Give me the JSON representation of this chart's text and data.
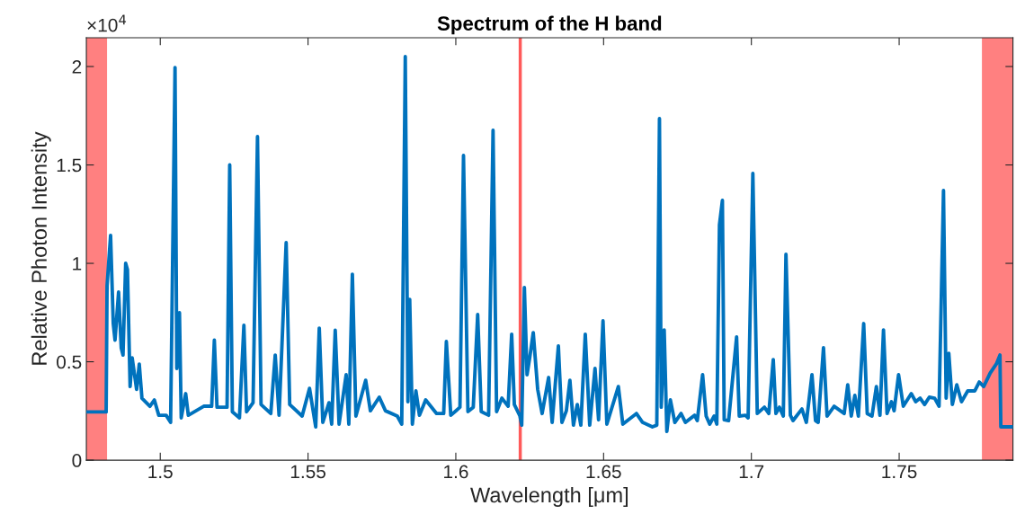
{
  "chart_data": {
    "type": "line",
    "title": "Spectrum of the H band",
    "xlabel": "Wavelength [μm]",
    "ylabel": "Relative Photon Intensity",
    "annotations": [
      "×10$^{4}$"
    ],
    "xlim": [
      1.475,
      1.7885
    ],
    "xticks": [
      1.5,
      1.55,
      1.6,
      1.65,
      1.7,
      1.75
    ],
    "ylim": [
      0,
      2.146
    ],
    "yticks": [
      0,
      0.5,
      1,
      1.5,
      2
    ],
    "grid": false,
    "legend": false,
    "line_style": "solid",
    "marker": "none",
    "bands": [
      {
        "axis": "x",
        "from": 1.475,
        "to": 1.482,
        "color": "#ff8080"
      },
      {
        "axis": "x",
        "from": 1.778,
        "to": 1.7885,
        "color": "#ff8080"
      }
    ],
    "ref_lines": [
      {
        "axis": "x",
        "value": 1.6218,
        "color": "#ff5a5a",
        "line_style": "solid"
      }
    ],
    "series": [
      {
        "color": "#0072bd",
        "x": [
          1.475,
          1.4817,
          1.482,
          1.4832,
          1.4841,
          1.4847,
          1.4859,
          1.4868,
          1.4874,
          1.4883,
          1.4889,
          1.4898,
          1.4905,
          1.492,
          1.4929,
          1.4938,
          1.4965,
          1.498,
          1.4995,
          1.502,
          1.5035,
          1.505,
          1.5056,
          1.5065,
          1.5071,
          1.5086,
          1.5095,
          1.5147,
          1.5174,
          1.5183,
          1.5192,
          1.5226,
          1.5235,
          1.5244,
          1.5268,
          1.5283,
          1.5292,
          1.5314,
          1.5329,
          1.5341,
          1.5374,
          1.5389,
          1.5402,
          1.5426,
          1.5438,
          1.548,
          1.5505,
          1.5526,
          1.5538,
          1.555,
          1.5571,
          1.558,
          1.5592,
          1.5605,
          1.5629,
          1.5638,
          1.565,
          1.5662,
          1.5695,
          1.5711,
          1.5741,
          1.5762,
          1.5802,
          1.5817,
          1.5829,
          1.5838,
          1.5844,
          1.5853,
          1.5865,
          1.5877,
          1.5898,
          1.5935,
          1.5959,
          1.5968,
          1.5983,
          1.6014,
          1.6026,
          1.6041,
          1.6059,
          1.6074,
          1.6086,
          1.6111,
          1.6126,
          1.6138,
          1.6156,
          1.6177,
          1.6189,
          1.6198,
          1.6217,
          1.6223,
          1.6232,
          1.6241,
          1.625,
          1.6262,
          1.6277,
          1.6292,
          1.6314,
          1.6326,
          1.6347,
          1.6359,
          1.6374,
          1.6386,
          1.6398,
          1.6411,
          1.6423,
          1.6438,
          1.6453,
          1.6471,
          1.6483,
          1.6498,
          1.6511,
          1.655,
          1.6565,
          1.6611,
          1.6632,
          1.6665,
          1.668,
          1.6689,
          1.6695,
          1.6705,
          1.6714,
          1.6726,
          1.6741,
          1.6762,
          1.6777,
          1.6808,
          1.6817,
          1.6835,
          1.6847,
          1.6859,
          1.6874,
          1.6883,
          1.6892,
          1.6902,
          1.6908,
          1.6923,
          1.695,
          1.6959,
          1.698,
          1.6989,
          1.7005,
          1.702,
          1.7044,
          1.7059,
          1.7074,
          1.7083,
          1.7095,
          1.7108,
          1.7117,
          1.7132,
          1.7141,
          1.7171,
          1.7186,
          1.7205,
          1.7217,
          1.7226,
          1.7244,
          1.7256,
          1.728,
          1.7314,
          1.7326,
          1.7338,
          1.735,
          1.7362,
          1.738,
          1.7392,
          1.7408,
          1.7423,
          1.7435,
          1.7447,
          1.7459,
          1.7474,
          1.7483,
          1.7498,
          1.7514,
          1.7541,
          1.7556,
          1.7571,
          1.7586,
          1.7602,
          1.762,
          1.7635,
          1.765,
          1.7659,
          1.7668,
          1.768,
          1.7695,
          1.7711,
          1.7732,
          1.7756,
          1.7771,
          1.7786,
          1.7808,
          1.7829,
          1.7841,
          1.7844,
          1.7883
        ],
        "values": [
          0.245,
          0.245,
          0.886,
          1.142,
          0.694,
          0.61,
          0.854,
          0.57,
          0.534,
          1,
          0.968,
          0.374,
          0.52,
          0.36,
          0.488,
          0.315,
          0.274,
          0.306,
          0.228,
          0.228,
          0.192,
          1.995,
          0.466,
          0.749,
          0.215,
          0.338,
          0.228,
          0.274,
          0.274,
          0.61,
          0.269,
          0.269,
          1.5,
          0.246,
          0.215,
          0.685,
          0.246,
          0.292,
          1.644,
          0.283,
          0.237,
          0.534,
          0.228,
          1.105,
          0.283,
          0.224,
          0.365,
          0.169,
          0.671,
          0.192,
          0.292,
          0.183,
          0.66,
          0.183,
          0.434,
          0.183,
          0.945,
          0.224,
          0.406,
          0.251,
          0.32,
          0.251,
          0.224,
          0.183,
          2.05,
          0.297,
          0.817,
          0.183,
          0.352,
          0.228,
          0.306,
          0.237,
          0.237,
          0.603,
          0.228,
          0.269,
          1.548,
          0.247,
          0.269,
          0.74,
          0.247,
          0.228,
          1.676,
          0.247,
          0.315,
          0.274,
          0.64,
          0.283,
          0.224,
          0.178,
          0.877,
          0.434,
          0.52,
          0.648,
          0.36,
          0.237,
          0.42,
          0.192,
          0.58,
          0.192,
          0.251,
          0.406,
          0.178,
          0.283,
          0.178,
          0.64,
          0.178,
          0.466,
          0.205,
          0.708,
          0.183,
          0.374,
          0.183,
          0.237,
          0.192,
          0.169,
          0.178,
          1.735,
          0.269,
          0.662,
          0.146,
          0.306,
          0.192,
          0.237,
          0.192,
          0.228,
          0.201,
          0.434,
          0.224,
          0.183,
          0.224,
          0.183,
          1.196,
          1.32,
          0.205,
          0.201,
          0.626,
          0.224,
          0.228,
          0.215,
          1.457,
          0.237,
          0.269,
          0.237,
          0.511,
          0.237,
          0.269,
          0.224,
          1.046,
          0.228,
          0.201,
          0.26,
          0.192,
          0.434,
          0.201,
          0.192,
          0.571,
          0.224,
          0.274,
          0.237,
          0.383,
          0.224,
          0.329,
          0.224,
          0.694,
          0.237,
          0.224,
          0.374,
          0.228,
          0.662,
          0.237,
          0.297,
          0.251,
          0.434,
          0.274,
          0.338,
          0.297,
          0.315,
          0.283,
          0.32,
          0.315,
          0.274,
          1.37,
          0.315,
          0.543,
          0.283,
          0.383,
          0.297,
          0.352,
          0.352,
          0.397,
          0.374,
          0.443,
          0.489,
          0.534,
          0.169,
          0.169
        ]
      }
    ]
  }
}
